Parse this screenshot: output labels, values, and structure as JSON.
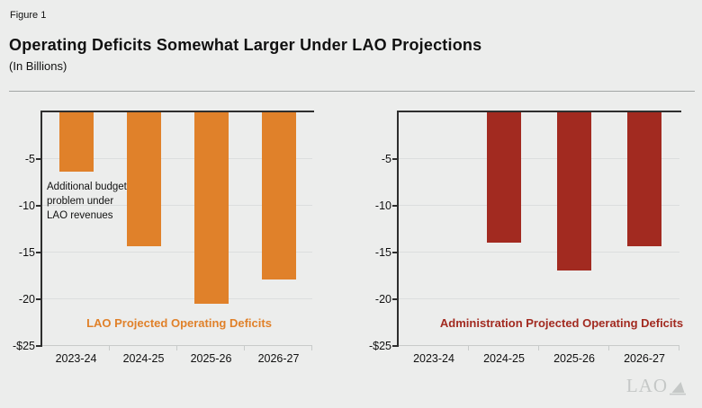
{
  "figure_label": "Figure 1",
  "title": "Operating Deficits Somewhat Larger Under LAO Projections",
  "subtitle": "(In Billions)",
  "logo": {
    "text": "LAO"
  },
  "colors": {
    "background": "#ECEDEC",
    "axis": "#2E2E2E",
    "gridline": "#DCDEDE",
    "baseline": "#C8CBCA",
    "orange": "#E0812A",
    "red": "#A22A20",
    "logo_gray": "#C5C8C7",
    "divider_gray": "#A3A6A5"
  },
  "chart_data": [
    {
      "type": "bar",
      "title": "LAO Projected Operating Deficits",
      "series_label": "LAO Projected Operating Deficits",
      "categories": [
        "2023-24",
        "2024-25",
        "2025-26",
        "2026-27"
      ],
      "values": [
        -6.3,
        -14.3,
        -20.5,
        -17.9
      ],
      "xlabel": "",
      "ylabel": "",
      "ylim": [
        -25,
        0
      ],
      "yticks": [
        -5,
        -10,
        -15,
        -20,
        -25
      ],
      "ytick_labels": [
        "-5",
        "-10",
        "-15",
        "-20",
        "-$25"
      ],
      "bar_color": "#E0812A",
      "label_color": "#E0812A",
      "grid": true,
      "legend_position": "bottom-center",
      "annotation": "Additional budget problem under LAO revenues",
      "annotation_lines": [
        "Additional budget",
        "problem under",
        "LAO revenues"
      ],
      "annotation_target_category": "2023-24"
    },
    {
      "type": "bar",
      "title": "Administration Projected Operating Deficits",
      "series_label": "Administration Projected Operating Deficits",
      "categories": [
        "2023-24",
        "2024-25",
        "2025-26",
        "2026-27"
      ],
      "values": [
        null,
        -13.9,
        -16.9,
        -14.3
      ],
      "xlabel": "",
      "ylabel": "",
      "ylim": [
        -25,
        0
      ],
      "yticks": [
        -5,
        -10,
        -15,
        -20,
        -25
      ],
      "ytick_labels": [
        "-5",
        "-10",
        "-15",
        "-20",
        "-$25"
      ],
      "bar_color": "#A22A20",
      "label_color": "#A22A20",
      "grid": true,
      "legend_position": "bottom-center",
      "annotation": "",
      "annotation_lines": []
    }
  ]
}
